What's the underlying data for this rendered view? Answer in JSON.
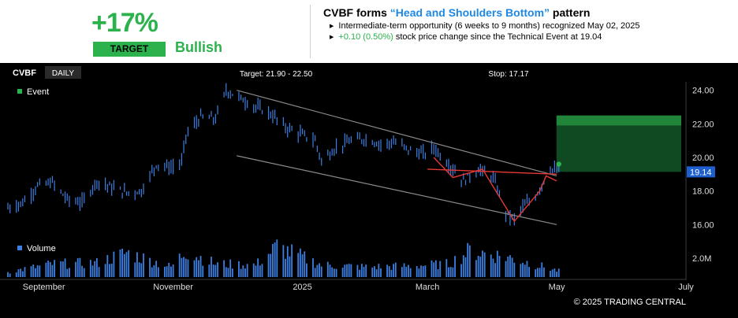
{
  "header": {
    "percent": "+17%",
    "target_label": "TARGET",
    "sentiment": "Bullish",
    "title_prefix": "CVBF forms ",
    "pattern_name": "“Head and Shoulders Bottom”",
    "title_suffix": " pattern",
    "line1": "Intermediate-term opportunity (6 weeks to 9 months) recognized May 02, 2025",
    "line2_change": "+0.10 (0.50%)",
    "line2_rest": " stock price change since the Technical Event at 19.04"
  },
  "chart_toolbar": {
    "ticker": "CVBF",
    "interval": "DAILY",
    "target_text": "Target: 21.90 - 22.50",
    "stop_text": "Stop: 17.17"
  },
  "legend": {
    "event": "Event",
    "volume": "Volume"
  },
  "footer": {
    "copyright": "© 2025 TRADING CENTRAL"
  },
  "colors": {
    "bullish_green": "#2bb24c",
    "title_blue": "#1e88e5",
    "candle_blue": "#3d7fe0",
    "pattern_red": "#e53935",
    "channel_gray": "#8a8a8a",
    "target_zone": "#0f4a22",
    "price_tag": "#1e5fd0"
  },
  "chart_data": {
    "type": "line",
    "title": "CVBF forms “Head and Shoulders Bottom” pattern",
    "x_tick_labels": [
      "September",
      "November",
      "2025",
      "March",
      "May",
      "July"
    ],
    "x_ticks_dates": [
      "2024-09-01",
      "2024-11-01",
      "2025-01-01",
      "2025-03-01",
      "2025-05-01",
      "2025-07-01"
    ],
    "x_range": [
      "2024-08-15",
      "2025-07-01"
    ],
    "y_ticks": [
      "16.00",
      "18.00",
      "20.00",
      "22.00",
      "24.00"
    ],
    "ylim": [
      15.5,
      24.5
    ],
    "last_price": "19.14",
    "volume_tick": "2.0M",
    "volume_ylim": [
      0,
      3500000
    ],
    "target_range": [
      21.9,
      22.5
    ],
    "stop": 17.17,
    "event": {
      "date": "2025-05-02",
      "price": 19.6
    },
    "price_series": [
      {
        "date": "2024-08-15",
        "value": 17.0
      },
      {
        "date": "2024-08-22",
        "value": 17.3
      },
      {
        "date": "2024-08-29",
        "value": 18.3
      },
      {
        "date": "2024-09-05",
        "value": 18.5
      },
      {
        "date": "2024-09-12",
        "value": 17.5
      },
      {
        "date": "2024-09-19",
        "value": 17.3
      },
      {
        "date": "2024-09-26",
        "value": 18.6
      },
      {
        "date": "2024-10-03",
        "value": 18.2
      },
      {
        "date": "2024-10-10",
        "value": 17.9
      },
      {
        "date": "2024-10-17",
        "value": 18.0
      },
      {
        "date": "2024-10-24",
        "value": 19.6
      },
      {
        "date": "2024-10-31",
        "value": 19.4
      },
      {
        "date": "2024-11-05",
        "value": 19.7
      },
      {
        "date": "2024-11-07",
        "value": 21.3
      },
      {
        "date": "2024-11-14",
        "value": 22.4
      },
      {
        "date": "2024-11-21",
        "value": 22.3
      },
      {
        "date": "2024-11-26",
        "value": 24.0
      },
      {
        "date": "2024-12-03",
        "value": 23.5
      },
      {
        "date": "2024-12-10",
        "value": 23.0
      },
      {
        "date": "2024-12-17",
        "value": 22.6
      },
      {
        "date": "2024-12-24",
        "value": 21.8
      },
      {
        "date": "2024-12-31",
        "value": 21.4
      },
      {
        "date": "2025-01-07",
        "value": 21.0
      },
      {
        "date": "2025-01-10",
        "value": 19.8
      },
      {
        "date": "2025-01-17",
        "value": 20.6
      },
      {
        "date": "2025-01-24",
        "value": 21.0
      },
      {
        "date": "2025-01-31",
        "value": 21.1
      },
      {
        "date": "2025-02-07",
        "value": 20.8
      },
      {
        "date": "2025-02-14",
        "value": 20.9
      },
      {
        "date": "2025-02-21",
        "value": 20.4
      },
      {
        "date": "2025-02-28",
        "value": 20.2
      },
      {
        "date": "2025-03-04",
        "value": 20.6
      },
      {
        "date": "2025-03-11",
        "value": 19.6
      },
      {
        "date": "2025-03-18",
        "value": 18.6
      },
      {
        "date": "2025-03-25",
        "value": 19.3
      },
      {
        "date": "2025-04-01",
        "value": 18.8
      },
      {
        "date": "2025-04-07",
        "value": 16.7
      },
      {
        "date": "2025-04-11",
        "value": 16.3
      },
      {
        "date": "2025-04-14",
        "value": 16.9
      },
      {
        "date": "2025-04-21",
        "value": 17.7
      },
      {
        "date": "2025-04-28",
        "value": 19.3
      },
      {
        "date": "2025-05-02",
        "value": 19.14
      }
    ],
    "channel_upper": [
      {
        "date": "2024-12-01",
        "value": 24.0
      },
      {
        "date": "2025-05-01",
        "value": 18.9
      }
    ],
    "channel_lower": [
      {
        "date": "2024-12-01",
        "value": 20.1
      },
      {
        "date": "2025-05-01",
        "value": 16.0
      }
    ],
    "neckline": [
      {
        "date": "2025-03-01",
        "value": 19.3
      },
      {
        "date": "2025-05-01",
        "value": 19.0
      }
    ],
    "pattern_points": [
      {
        "date": "2025-03-04",
        "value": 20.0
      },
      {
        "date": "2025-03-13",
        "value": 18.8
      },
      {
        "date": "2025-03-27",
        "value": 19.3
      },
      {
        "date": "2025-04-11",
        "value": 16.2
      },
      {
        "date": "2025-04-23",
        "value": 18.0
      },
      {
        "date": "2025-04-26",
        "value": 18.9
      },
      {
        "date": "2025-05-01",
        "value": 18.6
      }
    ],
    "volume_series": [
      {
        "date": "2024-08-15",
        "value": 500000
      },
      {
        "date": "2024-09-05",
        "value": 1300000
      },
      {
        "date": "2024-09-26",
        "value": 1400000
      },
      {
        "date": "2024-10-10",
        "value": 2400000
      },
      {
        "date": "2024-10-31",
        "value": 1000000
      },
      {
        "date": "2024-11-07",
        "value": 2600000
      },
      {
        "date": "2024-11-21",
        "value": 1300000
      },
      {
        "date": "2024-12-10",
        "value": 1200000
      },
      {
        "date": "2024-12-20",
        "value": 3000000
      },
      {
        "date": "2025-01-10",
        "value": 1200000
      },
      {
        "date": "2025-01-31",
        "value": 1000000
      },
      {
        "date": "2025-02-21",
        "value": 1100000
      },
      {
        "date": "2025-03-11",
        "value": 1300000
      },
      {
        "date": "2025-03-21",
        "value": 2600000
      },
      {
        "date": "2025-04-07",
        "value": 2000000
      },
      {
        "date": "2025-04-11",
        "value": 1800000
      },
      {
        "date": "2025-04-25",
        "value": 1000000
      },
      {
        "date": "2025-05-02",
        "value": 600000
      }
    ]
  }
}
